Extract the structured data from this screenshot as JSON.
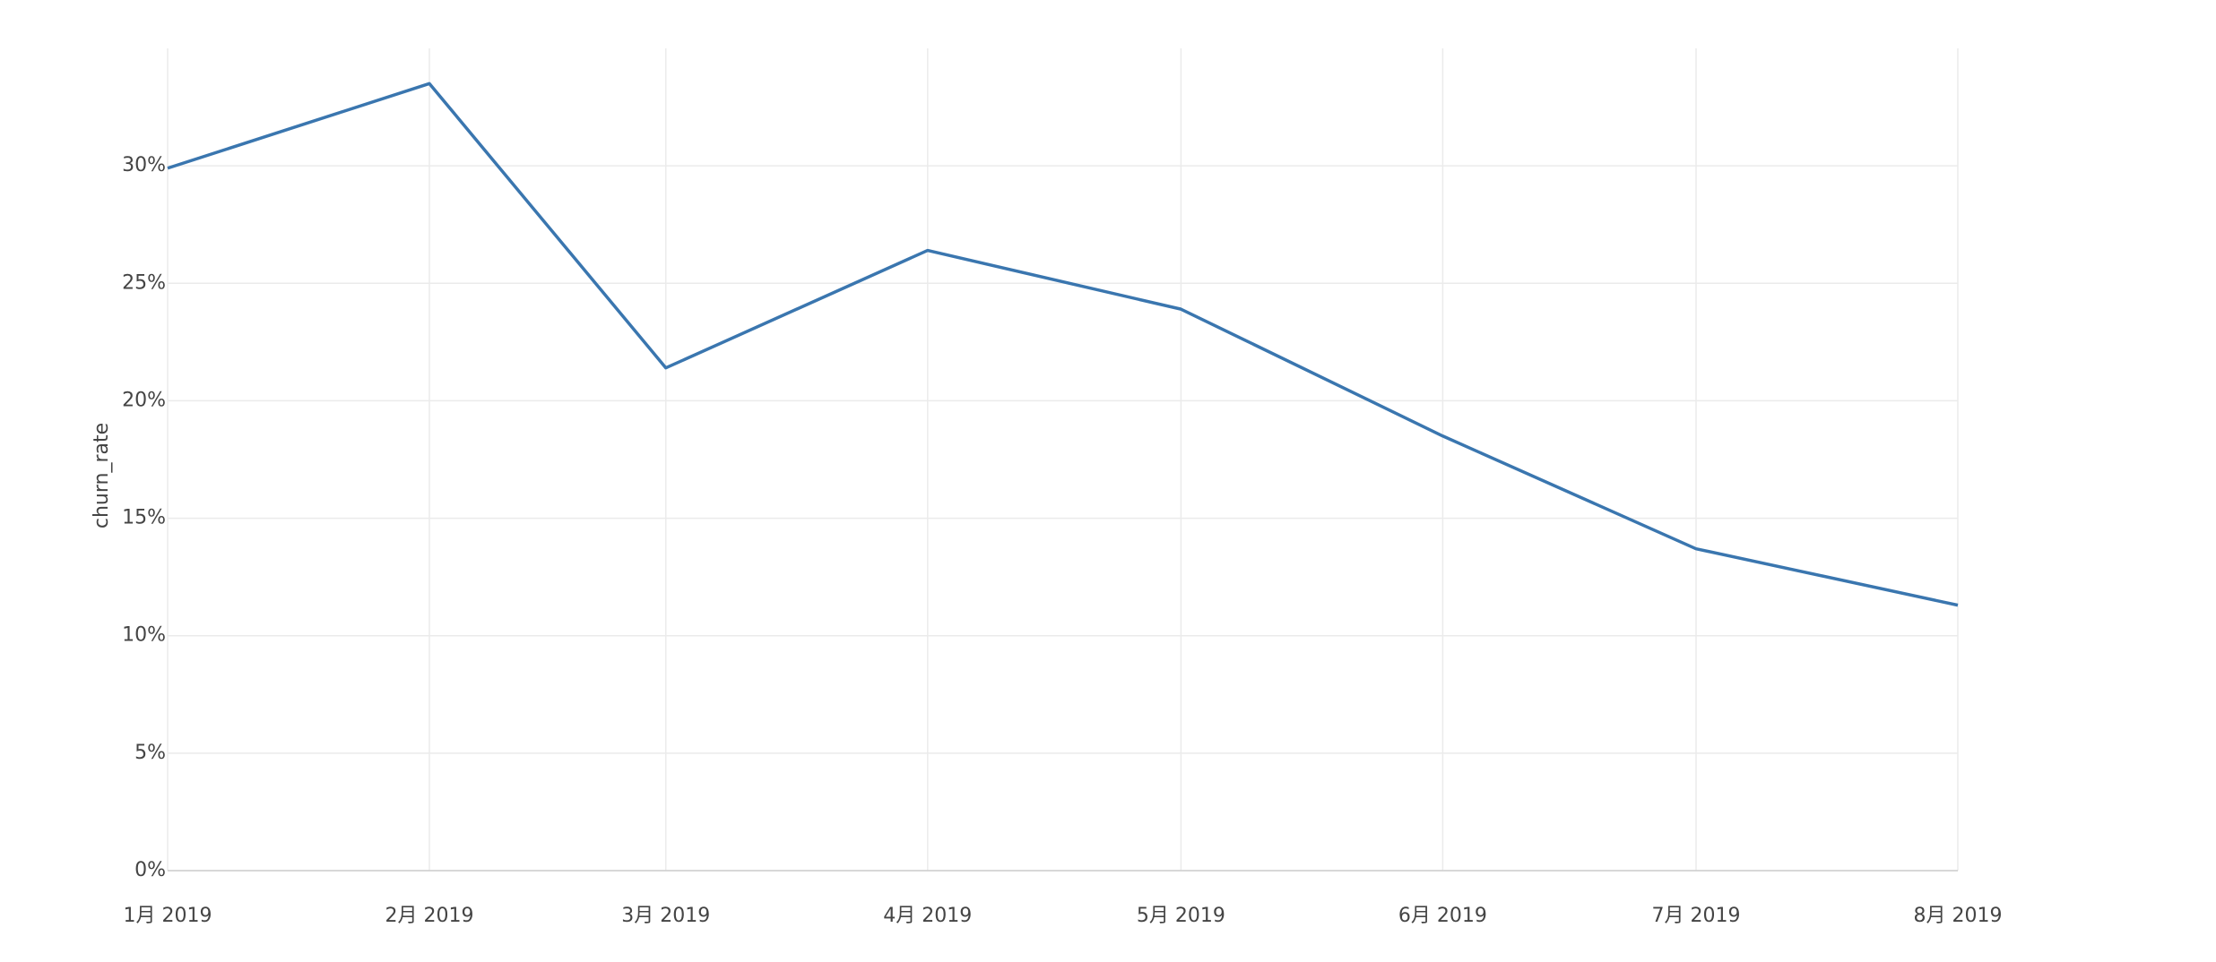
{
  "chart_data": {
    "type": "line",
    "y_label": "churn_rate",
    "x": [
      "2019-01",
      "2019-02",
      "2019-03",
      "2019-04",
      "2019-05",
      "2019-06",
      "2019-07",
      "2019-08"
    ],
    "series": [
      {
        "name": "churn_rate",
        "color": "#3a76af",
        "values": [
          29.9,
          33.5,
          21.4,
          26.4,
          23.9,
          18.5,
          13.7,
          11.3
        ]
      }
    ],
    "xlim": [
      "2019-01",
      "2019-08"
    ],
    "xticks": [
      {
        "value": "2019-01",
        "label": "1月 2019"
      },
      {
        "value": "2019-02",
        "label": "2月 2019"
      },
      {
        "value": "2019-03",
        "label": "3月 2019"
      },
      {
        "value": "2019-04",
        "label": "4月 2019"
      },
      {
        "value": "2019-05",
        "label": "5月 2019"
      },
      {
        "value": "2019-06",
        "label": "6月 2019"
      },
      {
        "value": "2019-07",
        "label": "7月 2019"
      },
      {
        "value": "2019-08",
        "label": "8月 2019"
      }
    ],
    "ylim": [
      0,
      35
    ],
    "yticks": [
      {
        "value": 0,
        "label": "0%"
      },
      {
        "value": 5,
        "label": "5%"
      },
      {
        "value": 10,
        "label": "10%"
      },
      {
        "value": 15,
        "label": "15%"
      },
      {
        "value": 20,
        "label": "20%"
      },
      {
        "value": 25,
        "label": "25%"
      },
      {
        "value": 30,
        "label": "30%"
      }
    ],
    "grid": true
  }
}
